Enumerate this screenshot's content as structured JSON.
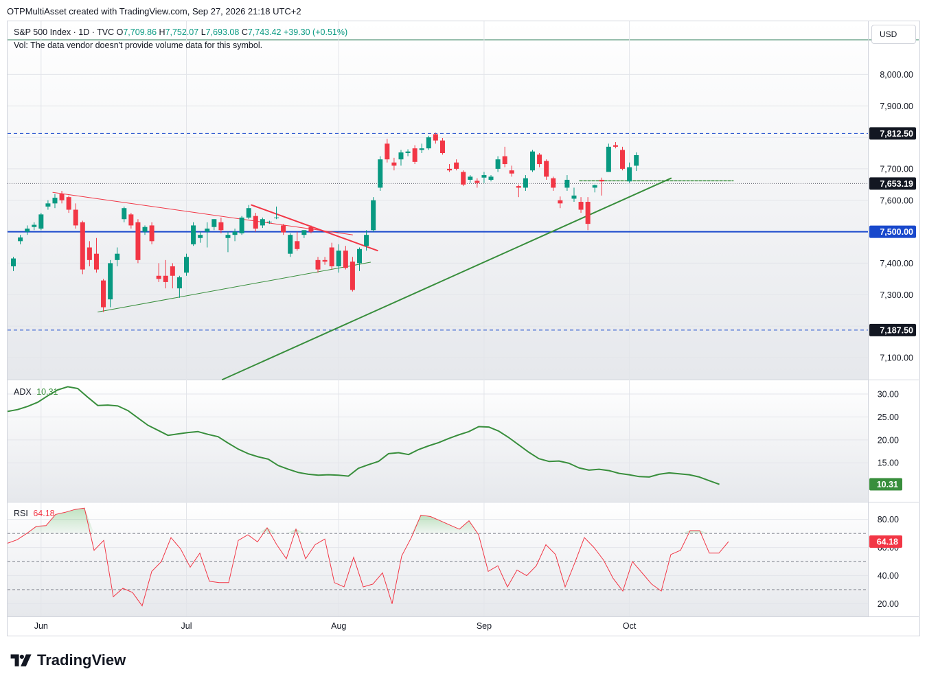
{
  "header": {
    "caption": "OTPMultiAsset created with TradingView.com, Sep 27, 2026 21:18 UTC+2",
    "symbol": "S&P 500 Index · 1D · TVC",
    "open_label": "O",
    "open": "7,709.86",
    "high_label": "H",
    "high": "7,752.07",
    "low_label": "L",
    "low": "7,693.08",
    "close_label": "C",
    "close": "7,743.42",
    "change": "+39.30 (+0.51%)",
    "volume_note": "Vol: The data vendor doesn't provide volume data for this symbol.",
    "currency": "USD"
  },
  "colors": {
    "up": "#089981",
    "down": "#f23645",
    "trend_green": "#388e3c",
    "trend_red": "#f23645",
    "level_blue": "#1848cc",
    "adx": "#388e3c",
    "rsi": "#f23645"
  },
  "chart_data": {
    "type": "candlestick",
    "price_axis": {
      "ticks": [
        "8,000.00",
        "7,900.00",
        "7,700.00",
        "7,600.00",
        "7,400.00",
        "7,300.00",
        "7,100.00"
      ],
      "tick_values": [
        8000,
        7900,
        7700,
        7600,
        7400,
        7300,
        7100
      ],
      "range": [
        7030,
        8110
      ],
      "badges": [
        {
          "label": "7,812.50",
          "value": 7812.5,
          "color": "#131722",
          "style": "dashed-blue"
        },
        {
          "label": "7,653.19",
          "value": 7653.19,
          "color": "#131722",
          "style": "dotted-close"
        },
        {
          "label": "7,500.00",
          "value": 7500,
          "color": "#131722",
          "style": "solid-blue"
        },
        {
          "label": "7,187.50",
          "value": 7187.5,
          "color": "#131722",
          "style": "dashed-blue"
        }
      ]
    },
    "time_axis": {
      "labels": [
        "Jun",
        "Jul",
        "Aug",
        "Sep",
        "Oct"
      ],
      "label_day_index": [
        4,
        25,
        47,
        68,
        89
      ]
    },
    "candles": [
      {
        "o": 7390,
        "h": 7420,
        "l": 7375,
        "c": 7415
      },
      {
        "o": 7470,
        "h": 7490,
        "l": 7460,
        "c": 7482
      },
      {
        "o": 7500,
        "h": 7520,
        "l": 7490,
        "c": 7510
      },
      {
        "o": 7515,
        "h": 7530,
        "l": 7505,
        "c": 7522
      },
      {
        "o": 7510,
        "h": 7560,
        "l": 7505,
        "c": 7555
      },
      {
        "o": 7580,
        "h": 7600,
        "l": 7570,
        "c": 7590
      },
      {
        "o": 7590,
        "h": 7620,
        "l": 7575,
        "c": 7608
      },
      {
        "o": 7620,
        "h": 7630,
        "l": 7590,
        "c": 7600
      },
      {
        "o": 7610,
        "h": 7615,
        "l": 7560,
        "c": 7570
      },
      {
        "o": 7570,
        "h": 7590,
        "l": 7510,
        "c": 7520
      },
      {
        "o": 7530,
        "h": 7535,
        "l": 7365,
        "c": 7380
      },
      {
        "o": 7450,
        "h": 7470,
        "l": 7390,
        "c": 7410
      },
      {
        "o": 7430,
        "h": 7480,
        "l": 7370,
        "c": 7380
      },
      {
        "o": 7345,
        "h": 7350,
        "l": 7245,
        "c": 7260
      },
      {
        "o": 7285,
        "h": 7410,
        "l": 7260,
        "c": 7400
      },
      {
        "o": 7410,
        "h": 7450,
        "l": 7390,
        "c": 7430
      },
      {
        "o": 7540,
        "h": 7580,
        "l": 7530,
        "c": 7575
      },
      {
        "o": 7555,
        "h": 7560,
        "l": 7510,
        "c": 7520
      },
      {
        "o": 7530,
        "h": 7540,
        "l": 7400,
        "c": 7410
      },
      {
        "o": 7500,
        "h": 7520,
        "l": 7490,
        "c": 7515
      },
      {
        "o": 7520,
        "h": 7530,
        "l": 7460,
        "c": 7470
      },
      {
        "o": 7360,
        "h": 7400,
        "l": 7340,
        "c": 7350
      },
      {
        "o": 7360,
        "h": 7410,
        "l": 7320,
        "c": 7340
      },
      {
        "o": 7390,
        "h": 7400,
        "l": 7320,
        "c": 7360
      },
      {
        "o": 7320,
        "h": 7360,
        "l": 7290,
        "c": 7355
      },
      {
        "o": 7370,
        "h": 7430,
        "l": 7360,
        "c": 7420
      },
      {
        "o": 7460,
        "h": 7530,
        "l": 7455,
        "c": 7520
      },
      {
        "o": 7480,
        "h": 7500,
        "l": 7465,
        "c": 7490
      },
      {
        "o": 7500,
        "h": 7530,
        "l": 7450,
        "c": 7510
      },
      {
        "o": 7515,
        "h": 7540,
        "l": 7505,
        "c": 7540
      },
      {
        "o": 7530,
        "h": 7545,
        "l": 7495,
        "c": 7505
      },
      {
        "o": 7480,
        "h": 7500,
        "l": 7435,
        "c": 7490
      },
      {
        "o": 7490,
        "h": 7510,
        "l": 7470,
        "c": 7500
      },
      {
        "o": 7495,
        "h": 7550,
        "l": 7490,
        "c": 7545
      },
      {
        "o": 7545,
        "h": 7585,
        "l": 7540,
        "c": 7575
      },
      {
        "o": 7550,
        "h": 7560,
        "l": 7500,
        "c": 7510
      },
      {
        "o": 7520,
        "h": 7545,
        "l": 7512,
        "c": 7540
      },
      {
        "o": 7530,
        "h": 7535,
        "l": 7525,
        "c": 7532
      },
      {
        "o": 7545,
        "h": 7580,
        "l": 7540,
        "c": 7545
      },
      {
        "o": 7520,
        "h": 7525,
        "l": 7490,
        "c": 7498
      },
      {
        "o": 7430,
        "h": 7495,
        "l": 7420,
        "c": 7490
      },
      {
        "o": 7470,
        "h": 7500,
        "l": 7440,
        "c": 7445
      },
      {
        "o": 7490,
        "h": 7505,
        "l": 7480,
        "c": 7505
      },
      {
        "o": 7515,
        "h": 7520,
        "l": 7495,
        "c": 7500
      },
      {
        "o": 7410,
        "h": 7420,
        "l": 7370,
        "c": 7380
      },
      {
        "o": 7410,
        "h": 7420,
        "l": 7395,
        "c": 7405
      },
      {
        "o": 7450,
        "h": 7465,
        "l": 7380,
        "c": 7390
      },
      {
        "o": 7390,
        "h": 7460,
        "l": 7370,
        "c": 7440
      },
      {
        "o": 7440,
        "h": 7455,
        "l": 7380,
        "c": 7385
      },
      {
        "o": 7405,
        "h": 7420,
        "l": 7310,
        "c": 7315
      },
      {
        "o": 7400,
        "h": 7450,
        "l": 7375,
        "c": 7445
      },
      {
        "o": 7455,
        "h": 7505,
        "l": 7440,
        "c": 7490
      },
      {
        "o": 7505,
        "h": 7610,
        "l": 7500,
        "c": 7600
      },
      {
        "o": 7640,
        "h": 7740,
        "l": 7630,
        "c": 7730
      },
      {
        "o": 7780,
        "h": 7795,
        "l": 7720,
        "c": 7730
      },
      {
        "o": 7720,
        "h": 7735,
        "l": 7695,
        "c": 7710
      },
      {
        "o": 7730,
        "h": 7760,
        "l": 7710,
        "c": 7752
      },
      {
        "o": 7750,
        "h": 7762,
        "l": 7740,
        "c": 7755
      },
      {
        "o": 7765,
        "h": 7775,
        "l": 7715,
        "c": 7722
      },
      {
        "o": 7760,
        "h": 7780,
        "l": 7750,
        "c": 7765
      },
      {
        "o": 7765,
        "h": 7805,
        "l": 7760,
        "c": 7800
      },
      {
        "o": 7810,
        "h": 7815,
        "l": 7780,
        "c": 7790
      },
      {
        "o": 7790,
        "h": 7798,
        "l": 7745,
        "c": 7750
      },
      {
        "o": 7700,
        "h": 7715,
        "l": 7690,
        "c": 7695
      },
      {
        "o": 7720,
        "h": 7730,
        "l": 7695,
        "c": 7700
      },
      {
        "o": 7690,
        "h": 7695,
        "l": 7645,
        "c": 7650
      },
      {
        "o": 7665,
        "h": 7680,
        "l": 7655,
        "c": 7675
      },
      {
        "o": 7662,
        "h": 7670,
        "l": 7640,
        "c": 7655
      },
      {
        "o": 7672,
        "h": 7690,
        "l": 7655,
        "c": 7680
      },
      {
        "o": 7665,
        "h": 7680,
        "l": 7660,
        "c": 7675
      },
      {
        "o": 7700,
        "h": 7740,
        "l": 7690,
        "c": 7730
      },
      {
        "o": 7740,
        "h": 7770,
        "l": 7705,
        "c": 7715
      },
      {
        "o": 7695,
        "h": 7710,
        "l": 7675,
        "c": 7685
      },
      {
        "o": 7645,
        "h": 7650,
        "l": 7610,
        "c": 7640
      },
      {
        "o": 7640,
        "h": 7680,
        "l": 7630,
        "c": 7670
      },
      {
        "o": 7695,
        "h": 7760,
        "l": 7690,
        "c": 7755
      },
      {
        "o": 7745,
        "h": 7750,
        "l": 7705,
        "c": 7715
      },
      {
        "o": 7725,
        "h": 7730,
        "l": 7665,
        "c": 7675
      },
      {
        "o": 7670,
        "h": 7675,
        "l": 7630,
        "c": 7640
      },
      {
        "o": 7600,
        "h": 7612,
        "l": 7575,
        "c": 7590
      },
      {
        "o": 7640,
        "h": 7680,
        "l": 7630,
        "c": 7665
      },
      {
        "o": 7605,
        "h": 7640,
        "l": 7595,
        "c": 7615
      },
      {
        "o": 7595,
        "h": 7610,
        "l": 7560,
        "c": 7570
      },
      {
        "o": 7595,
        "h": 7610,
        "l": 7505,
        "c": 7525
      },
      {
        "o": 7640,
        "h": 7650,
        "l": 7625,
        "c": 7648
      },
      {
        "o": 7665,
        "h": 7672,
        "l": 7615,
        "c": 7660
      },
      {
        "o": 7690,
        "h": 7780,
        "l": 7690,
        "c": 7770
      },
      {
        "o": 7775,
        "h": 7785,
        "l": 7765,
        "c": 7770
      },
      {
        "o": 7760,
        "h": 7770,
        "l": 7695,
        "c": 7700
      },
      {
        "o": 7660,
        "h": 7720,
        "l": 7655,
        "c": 7705
      },
      {
        "o": 7709.86,
        "h": 7752.07,
        "l": 7693.08,
        "c": 7743.42
      }
    ],
    "trendlines": [
      {
        "color": "#f23645",
        "width": 1,
        "from": {
          "i": 5.7,
          "v": 7625
        },
        "to": {
          "i": 49,
          "v": 7490
        }
      },
      {
        "color": "#f23645",
        "width": 2,
        "from": {
          "i": 34.4,
          "v": 7585
        },
        "to": {
          "i": 52.6,
          "v": 7440
        }
      },
      {
        "color": "#388e3c",
        "width": 1,
        "from": {
          "i": 12.2,
          "v": 7245
        },
        "to": {
          "i": 51.6,
          "v": 7403
        }
      },
      {
        "color": "#388e3c",
        "width": 2,
        "from": {
          "i": 30.2,
          "v": 7030
        },
        "to": {
          "i": 95,
          "v": 7670
        }
      },
      {
        "color": "#388e3c",
        "width": 1.5,
        "dash": "4 2",
        "from": {
          "i": 81.8,
          "v": 7662
        },
        "to": {
          "i": 104,
          "v": 7662
        }
      }
    ],
    "adx": {
      "label": "ADX",
      "value_label": "10.31",
      "ticks": [
        "30.00",
        "25.00",
        "20.00",
        "15.00"
      ],
      "tick_values": [
        30,
        25,
        20,
        15
      ],
      "range": [
        6.5,
        33
      ],
      "values": [
        26.2,
        26.6,
        27.3,
        28.2,
        29.6,
        30.9,
        31.6,
        31.2,
        29.3,
        27.5,
        27.6,
        27.4,
        26.4,
        24.8,
        23.2,
        22.1,
        21.0,
        21.3,
        21.6,
        21.8,
        21.2,
        20.7,
        19.3,
        18.0,
        17.0,
        16.3,
        15.8,
        14.4,
        13.6,
        12.9,
        12.5,
        12.3,
        12.4,
        12.3,
        12.1,
        13.8,
        14.6,
        15.3,
        17.0,
        17.2,
        16.8,
        17.9,
        18.7,
        19.4,
        20.3,
        21.1,
        21.8,
        22.9,
        22.8,
        21.9,
        20.5,
        18.9,
        17.3,
        15.9,
        15.3,
        15.4,
        14.9,
        13.9,
        13.4,
        13.6,
        13.3,
        12.7,
        12.4,
        12.0,
        11.9,
        12.5,
        12.8,
        12.6,
        12.4,
        11.9,
        11.1,
        10.31
      ]
    },
    "rsi": {
      "label": "RSI",
      "value_label": "64.18",
      "ticks": [
        "80.00",
        "60.00",
        "40.00",
        "20.00"
      ],
      "tick_values": [
        80,
        60,
        40,
        20
      ],
      "range": [
        11,
        92
      ],
      "bands": [
        70,
        50,
        30
      ],
      "values": [
        63.0,
        65.5,
        70.0,
        75.0,
        75.5,
        83.5,
        85.0,
        87.0,
        88.0,
        58.0,
        65.0,
        25.0,
        31.0,
        28.0,
        18.5,
        43.0,
        50.0,
        67.0,
        59.0,
        46.0,
        56.0,
        36.0,
        35.0,
        35.0,
        65.0,
        69.0,
        64.0,
        74.0,
        62.0,
        52.0,
        73.0,
        52.0,
        62.0,
        66.0,
        35.0,
        32.0,
        53.0,
        32.0,
        34.0,
        42.0,
        20.0,
        54.0,
        67.0,
        83.0,
        82.0,
        79.0,
        76.0,
        73.0,
        79.0,
        69.0,
        43.0,
        47.0,
        32.0,
        44.0,
        40.0,
        47.0,
        62.0,
        55.0,
        32.0,
        49.0,
        67.0,
        60.0,
        51.0,
        38.0,
        29.0,
        50.0,
        42.0,
        34.0,
        29.0,
        55.0,
        58.0,
        72.0,
        72.0,
        56.0,
        56.0,
        64.18
      ]
    }
  },
  "footer": {
    "brand": "TradingView"
  }
}
